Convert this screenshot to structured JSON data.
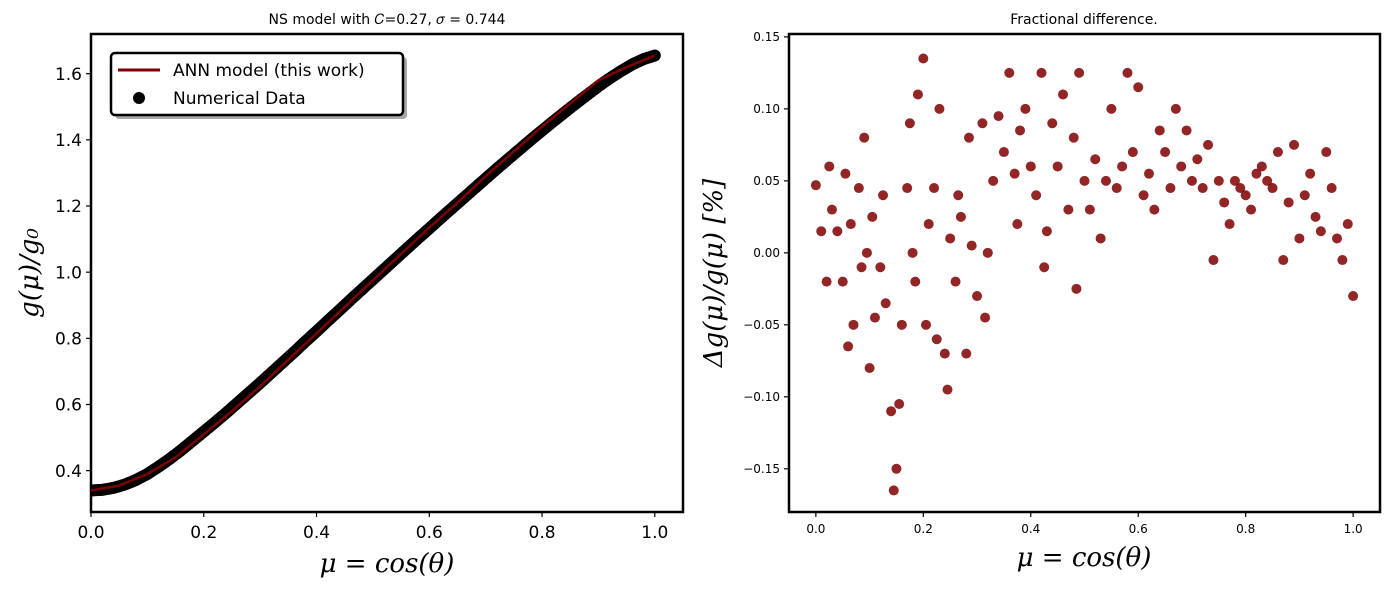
{
  "chart_data": [
    {
      "type": "line",
      "title": "NS model with 𝐶=0.27, 𝜎 = 0.744",
      "xlabel": "μ = cos(θ)",
      "ylabel": "g(μ)/g₀",
      "xlim": [
        0.0,
        1.05
      ],
      "ylim": [
        0.275,
        1.72
      ],
      "xticks": [
        "0.0",
        "0.2",
        "0.4",
        "0.6",
        "0.8",
        "1.0"
      ],
      "yticks": [
        "0.4",
        "0.6",
        "0.8",
        "1.0",
        "1.2",
        "1.4",
        "1.6"
      ],
      "grid": false,
      "legend_position": "top-left",
      "series": [
        {
          "name": "ANN model (this work)",
          "kind": "line",
          "color": "#7f0000",
          "x": [
            0.0,
            0.05,
            0.1,
            0.15,
            0.2,
            0.25,
            0.3,
            0.35,
            0.4,
            0.45,
            0.5,
            0.55,
            0.6,
            0.65,
            0.7,
            0.75,
            0.8,
            0.85,
            0.9,
            0.95,
            1.0
          ],
          "y": [
            0.34,
            0.355,
            0.39,
            0.44,
            0.51,
            0.58,
            0.655,
            0.735,
            0.815,
            0.895,
            0.975,
            1.055,
            1.135,
            1.21,
            1.29,
            1.365,
            1.44,
            1.51,
            1.58,
            1.62,
            1.655
          ]
        },
        {
          "name": "Numerical Data",
          "kind": "scatter",
          "color": "#000000",
          "x": [
            0.0,
            0.02,
            0.04,
            0.06,
            0.08,
            0.1,
            0.12,
            0.14,
            0.16,
            0.18,
            0.2,
            0.22,
            0.24,
            0.26,
            0.28,
            0.3,
            0.32,
            0.34,
            0.36,
            0.38,
            0.4,
            0.42,
            0.44,
            0.46,
            0.48,
            0.5,
            0.52,
            0.54,
            0.56,
            0.58,
            0.6,
            0.62,
            0.64,
            0.66,
            0.68,
            0.7,
            0.72,
            0.74,
            0.76,
            0.78,
            0.8,
            0.82,
            0.84,
            0.86,
            0.88,
            0.9,
            0.92,
            0.94,
            0.96,
            0.98,
            1.0
          ],
          "y": [
            0.34,
            0.342,
            0.348,
            0.358,
            0.372,
            0.39,
            0.412,
            0.436,
            0.462,
            0.49,
            0.518,
            0.546,
            0.575,
            0.605,
            0.635,
            0.665,
            0.696,
            0.727,
            0.758,
            0.79,
            0.821,
            0.853,
            0.884,
            0.916,
            0.947,
            0.978,
            1.009,
            1.04,
            1.071,
            1.102,
            1.132,
            1.163,
            1.193,
            1.223,
            1.253,
            1.283,
            1.313,
            1.342,
            1.371,
            1.4,
            1.428,
            1.456,
            1.483,
            1.51,
            1.536,
            1.562,
            1.586,
            1.608,
            1.628,
            1.644,
            1.655
          ]
        }
      ]
    },
    {
      "type": "scatter",
      "title": "Fractional difference.",
      "xlabel": "μ = cos(θ)",
      "ylabel": "Δg(μ)/g(μ) [%]",
      "xlim": [
        -0.05,
        1.05
      ],
      "ylim": [
        -0.18,
        0.152
      ],
      "xticks": [
        "0.0",
        "0.2",
        "0.4",
        "0.6",
        "0.8",
        "1.0"
      ],
      "yticks": [
        "−0.15",
        "−0.10",
        "−0.05",
        "0.00",
        "0.05",
        "0.10",
        "0.15"
      ],
      "grid": false,
      "series": [
        {
          "color": "#7f0000",
          "x": [
            0.0,
            0.01,
            0.02,
            0.025,
            0.03,
            0.04,
            0.05,
            0.055,
            0.06,
            0.065,
            0.07,
            0.08,
            0.085,
            0.09,
            0.095,
            0.1,
            0.105,
            0.11,
            0.12,
            0.125,
            0.13,
            0.14,
            0.145,
            0.15,
            0.155,
            0.16,
            0.17,
            0.175,
            0.18,
            0.185,
            0.19,
            0.2,
            0.205,
            0.21,
            0.22,
            0.225,
            0.23,
            0.24,
            0.245,
            0.25,
            0.26,
            0.265,
            0.27,
            0.28,
            0.285,
            0.29,
            0.3,
            0.31,
            0.315,
            0.32,
            0.33,
            0.34,
            0.35,
            0.36,
            0.37,
            0.375,
            0.38,
            0.39,
            0.4,
            0.41,
            0.42,
            0.425,
            0.43,
            0.44,
            0.45,
            0.46,
            0.47,
            0.48,
            0.485,
            0.49,
            0.5,
            0.51,
            0.52,
            0.53,
            0.54,
            0.55,
            0.56,
            0.57,
            0.58,
            0.59,
            0.6,
            0.61,
            0.62,
            0.63,
            0.64,
            0.65,
            0.66,
            0.67,
            0.68,
            0.69,
            0.7,
            0.71,
            0.72,
            0.73,
            0.74,
            0.75,
            0.76,
            0.77,
            0.78,
            0.79,
            0.8,
            0.81,
            0.82,
            0.83,
            0.84,
            0.85,
            0.86,
            0.87,
            0.88,
            0.89,
            0.9,
            0.91,
            0.92,
            0.93,
            0.94,
            0.95,
            0.96,
            0.97,
            0.98,
            0.99,
            1.0
          ],
          "y": [
            0.047,
            0.015,
            -0.02,
            0.06,
            0.03,
            0.015,
            -0.02,
            0.055,
            -0.065,
            0.02,
            -0.05,
            0.045,
            -0.01,
            0.08,
            0.0,
            -0.08,
            0.025,
            -0.045,
            -0.01,
            0.04,
            -0.035,
            -0.11,
            -0.165,
            -0.15,
            -0.105,
            -0.05,
            0.045,
            0.09,
            0.0,
            -0.02,
            0.11,
            0.135,
            -0.05,
            0.02,
            0.045,
            -0.06,
            0.1,
            -0.07,
            -0.095,
            0.01,
            -0.02,
            0.04,
            0.025,
            -0.07,
            0.08,
            0.005,
            -0.03,
            0.09,
            -0.045,
            0.0,
            0.05,
            0.095,
            0.07,
            0.125,
            0.055,
            0.02,
            0.085,
            0.1,
            0.06,
            0.04,
            0.125,
            -0.01,
            0.015,
            0.09,
            0.06,
            0.11,
            0.03,
            0.08,
            -0.025,
            0.125,
            0.05,
            0.03,
            0.065,
            0.01,
            0.05,
            0.1,
            0.045,
            0.06,
            0.125,
            0.07,
            0.115,
            0.04,
            0.055,
            0.03,
            0.085,
            0.07,
            0.045,
            0.1,
            0.06,
            0.085,
            0.05,
            0.065,
            0.045,
            0.075,
            -0.005,
            0.05,
            0.035,
            0.02,
            0.05,
            0.045,
            0.04,
            0.03,
            0.055,
            0.06,
            0.05,
            0.045,
            0.07,
            -0.005,
            0.035,
            0.075,
            0.01,
            0.04,
            0.055,
            0.025,
            0.015,
            0.07,
            0.045,
            0.01,
            -0.005,
            0.02,
            -0.03
          ]
        }
      ]
    }
  ]
}
